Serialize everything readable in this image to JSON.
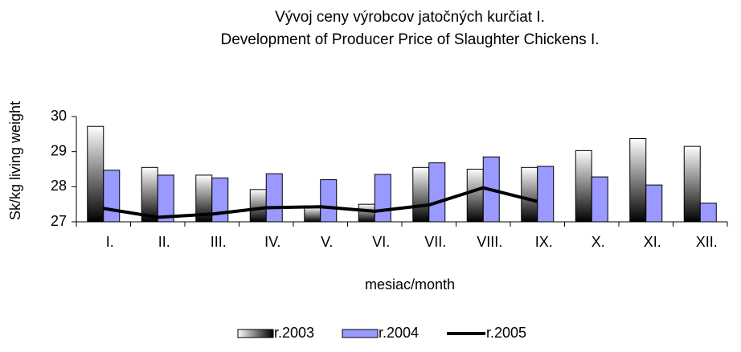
{
  "chart_data": {
    "type": "bar",
    "title": "Vývoj ceny výrobcov jatočných kurčiat I.",
    "subtitle": "Development of Producer Price of Slaughter Chickens I.",
    "x_label": "mesiac/month",
    "y_label": "Sk/kg living weight",
    "categories": [
      "I.",
      "II.",
      "III.",
      "IV.",
      "V.",
      "VI.",
      "VII.",
      "VIII.",
      "IX.",
      "X.",
      "XI.",
      "XII."
    ],
    "series": [
      {
        "name": "r.2003",
        "type": "bar",
        "color": "#ffffff",
        "values": [
          29.72,
          28.55,
          28.33,
          27.92,
          27.42,
          27.5,
          28.55,
          28.5,
          28.55,
          29.03,
          29.37,
          29.15
        ]
      },
      {
        "name": "r.2004",
        "type": "bar",
        "color": "#9999ff",
        "values": [
          28.47,
          28.33,
          28.25,
          28.37,
          28.2,
          28.35,
          28.68,
          28.85,
          28.58,
          28.28,
          28.05,
          27.53
        ]
      },
      {
        "name": "r.2005",
        "type": "line",
        "color": "#000000",
        "values": [
          27.38,
          27.13,
          27.22,
          27.4,
          27.43,
          27.3,
          27.48,
          27.97,
          27.58,
          null,
          null,
          null
        ]
      }
    ],
    "ylim": [
      27,
      30
    ],
    "yticks": [
      27,
      28,
      29,
      30
    ],
    "grid": false,
    "legend": "bottom"
  }
}
